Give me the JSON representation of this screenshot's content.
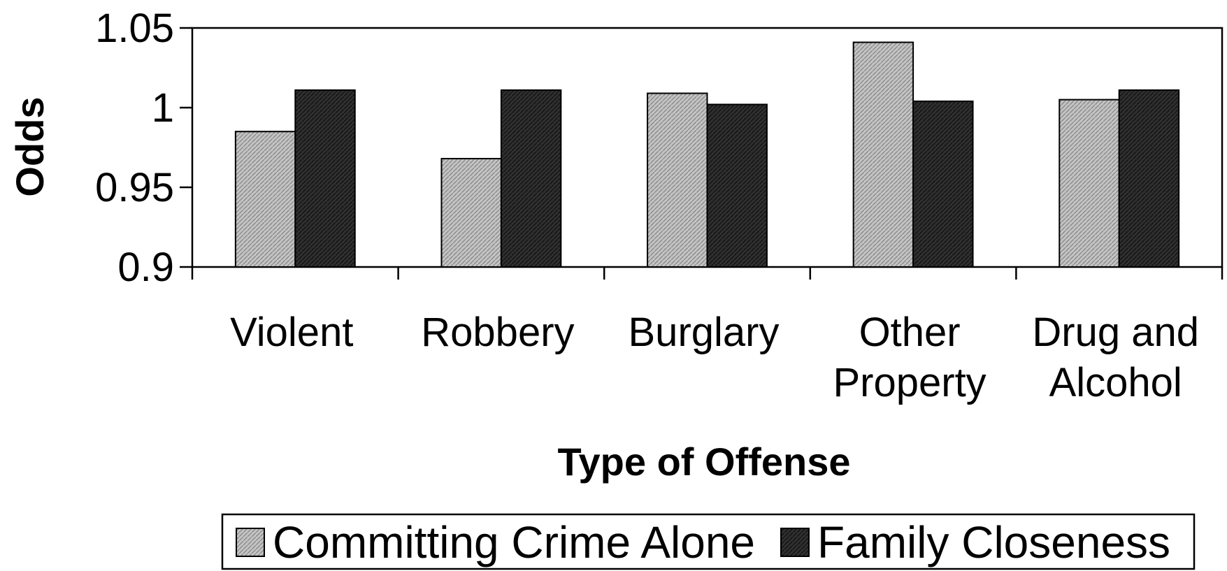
{
  "chart_data": {
    "type": "bar",
    "categories": [
      [
        "Violent"
      ],
      [
        "Robbery"
      ],
      [
        "Burglary"
      ],
      [
        "Other",
        "Property"
      ],
      [
        "Drug and",
        "Alcohol"
      ]
    ],
    "series": [
      {
        "name": "Committing Crime Alone",
        "values": [
          0.985,
          0.968,
          1.009,
          1.041,
          1.005
        ],
        "color": "#b8b8b8"
      },
      {
        "name": "Family Closeness",
        "values": [
          1.011,
          1.011,
          1.002,
          1.004,
          1.011
        ],
        "color": "#2a2a2a"
      }
    ],
    "xlabel": "Type of Offense",
    "ylabel": "Odds",
    "ylim": [
      0.9,
      1.05
    ],
    "yticks": [
      "0.9",
      "0.95",
      "1",
      "1.05"
    ],
    "grid": false,
    "legend_position": "bottom"
  }
}
